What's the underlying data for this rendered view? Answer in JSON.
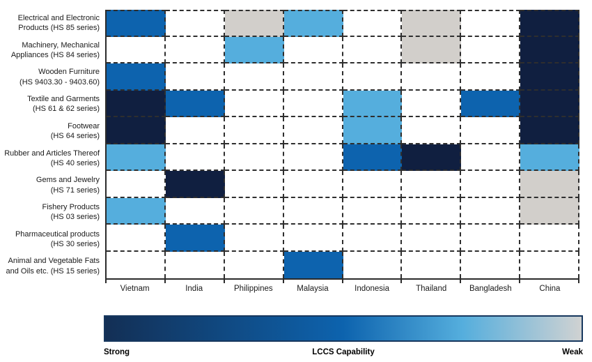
{
  "chart_data": {
    "type": "heatmap",
    "x_axis_categories": [
      "Vietnam",
      "India",
      "Philippines",
      "Malaysia",
      "Indonesia",
      "Thailand",
      "Bangladesh",
      "China"
    ],
    "row_categories": [
      "Electrical and Electronic\nProducts (HS 85 series)",
      "Machinery, Mechanical\nAppliances (HS 84 series)",
      "Wooden Furniture\n(HS 9403.30 - 9403.60)",
      "Textile and Garments\n(HS 61 & 62 series)",
      "Footwear\n(HS 64 series)",
      "Rubber and Articles Thereof\n(HS 40 series)",
      "Gems and Jewelry\n(HS 71 series)",
      "Fishery Products\n(HS 03 series)",
      "Pharmaceutical products\n(HS 30 series)",
      "Animal and Vegetable Fats\nand Oils etc. (HS 15 series)"
    ],
    "values_matrix": [
      [
        "medium",
        "none",
        "weak",
        "light",
        "none",
        "weak",
        "none",
        "strong"
      ],
      [
        "none",
        "none",
        "light",
        "none",
        "none",
        "weak",
        "none",
        "strong"
      ],
      [
        "medium",
        "none",
        "none",
        "none",
        "none",
        "none",
        "none",
        "strong"
      ],
      [
        "strong",
        "medium",
        "none",
        "none",
        "light",
        "none",
        "medium",
        "strong"
      ],
      [
        "strong",
        "none",
        "none",
        "none",
        "light",
        "none",
        "none",
        "strong"
      ],
      [
        "light",
        "none",
        "none",
        "none",
        "medium",
        "strong",
        "none",
        "light"
      ],
      [
        "none",
        "strong",
        "none",
        "none",
        "none",
        "none",
        "none",
        "weak"
      ],
      [
        "light",
        "none",
        "none",
        "none",
        "none",
        "none",
        "none",
        "weak"
      ],
      [
        "none",
        "medium",
        "none",
        "none",
        "none",
        "none",
        "none",
        "none"
      ],
      [
        "none",
        "none",
        "none",
        "medium",
        "none",
        "none",
        "none",
        "none"
      ]
    ],
    "scale_order_strong_to_weak": [
      "strong",
      "medium",
      "light",
      "weak"
    ],
    "palette": {
      "strong": "#101f40",
      "medium": "#0d63ae",
      "light": "#55aedd",
      "weak": "#d2cfcb",
      "none": "#ffffff"
    },
    "legend": {
      "gradient_start": "#132f55",
      "gradient_mid1": "#0d63ae",
      "gradient_mid2": "#55aedd",
      "gradient_end": "#d0d2d2",
      "left_label": "Strong",
      "title": "LCCS Capability",
      "right_label": "Weak"
    }
  }
}
